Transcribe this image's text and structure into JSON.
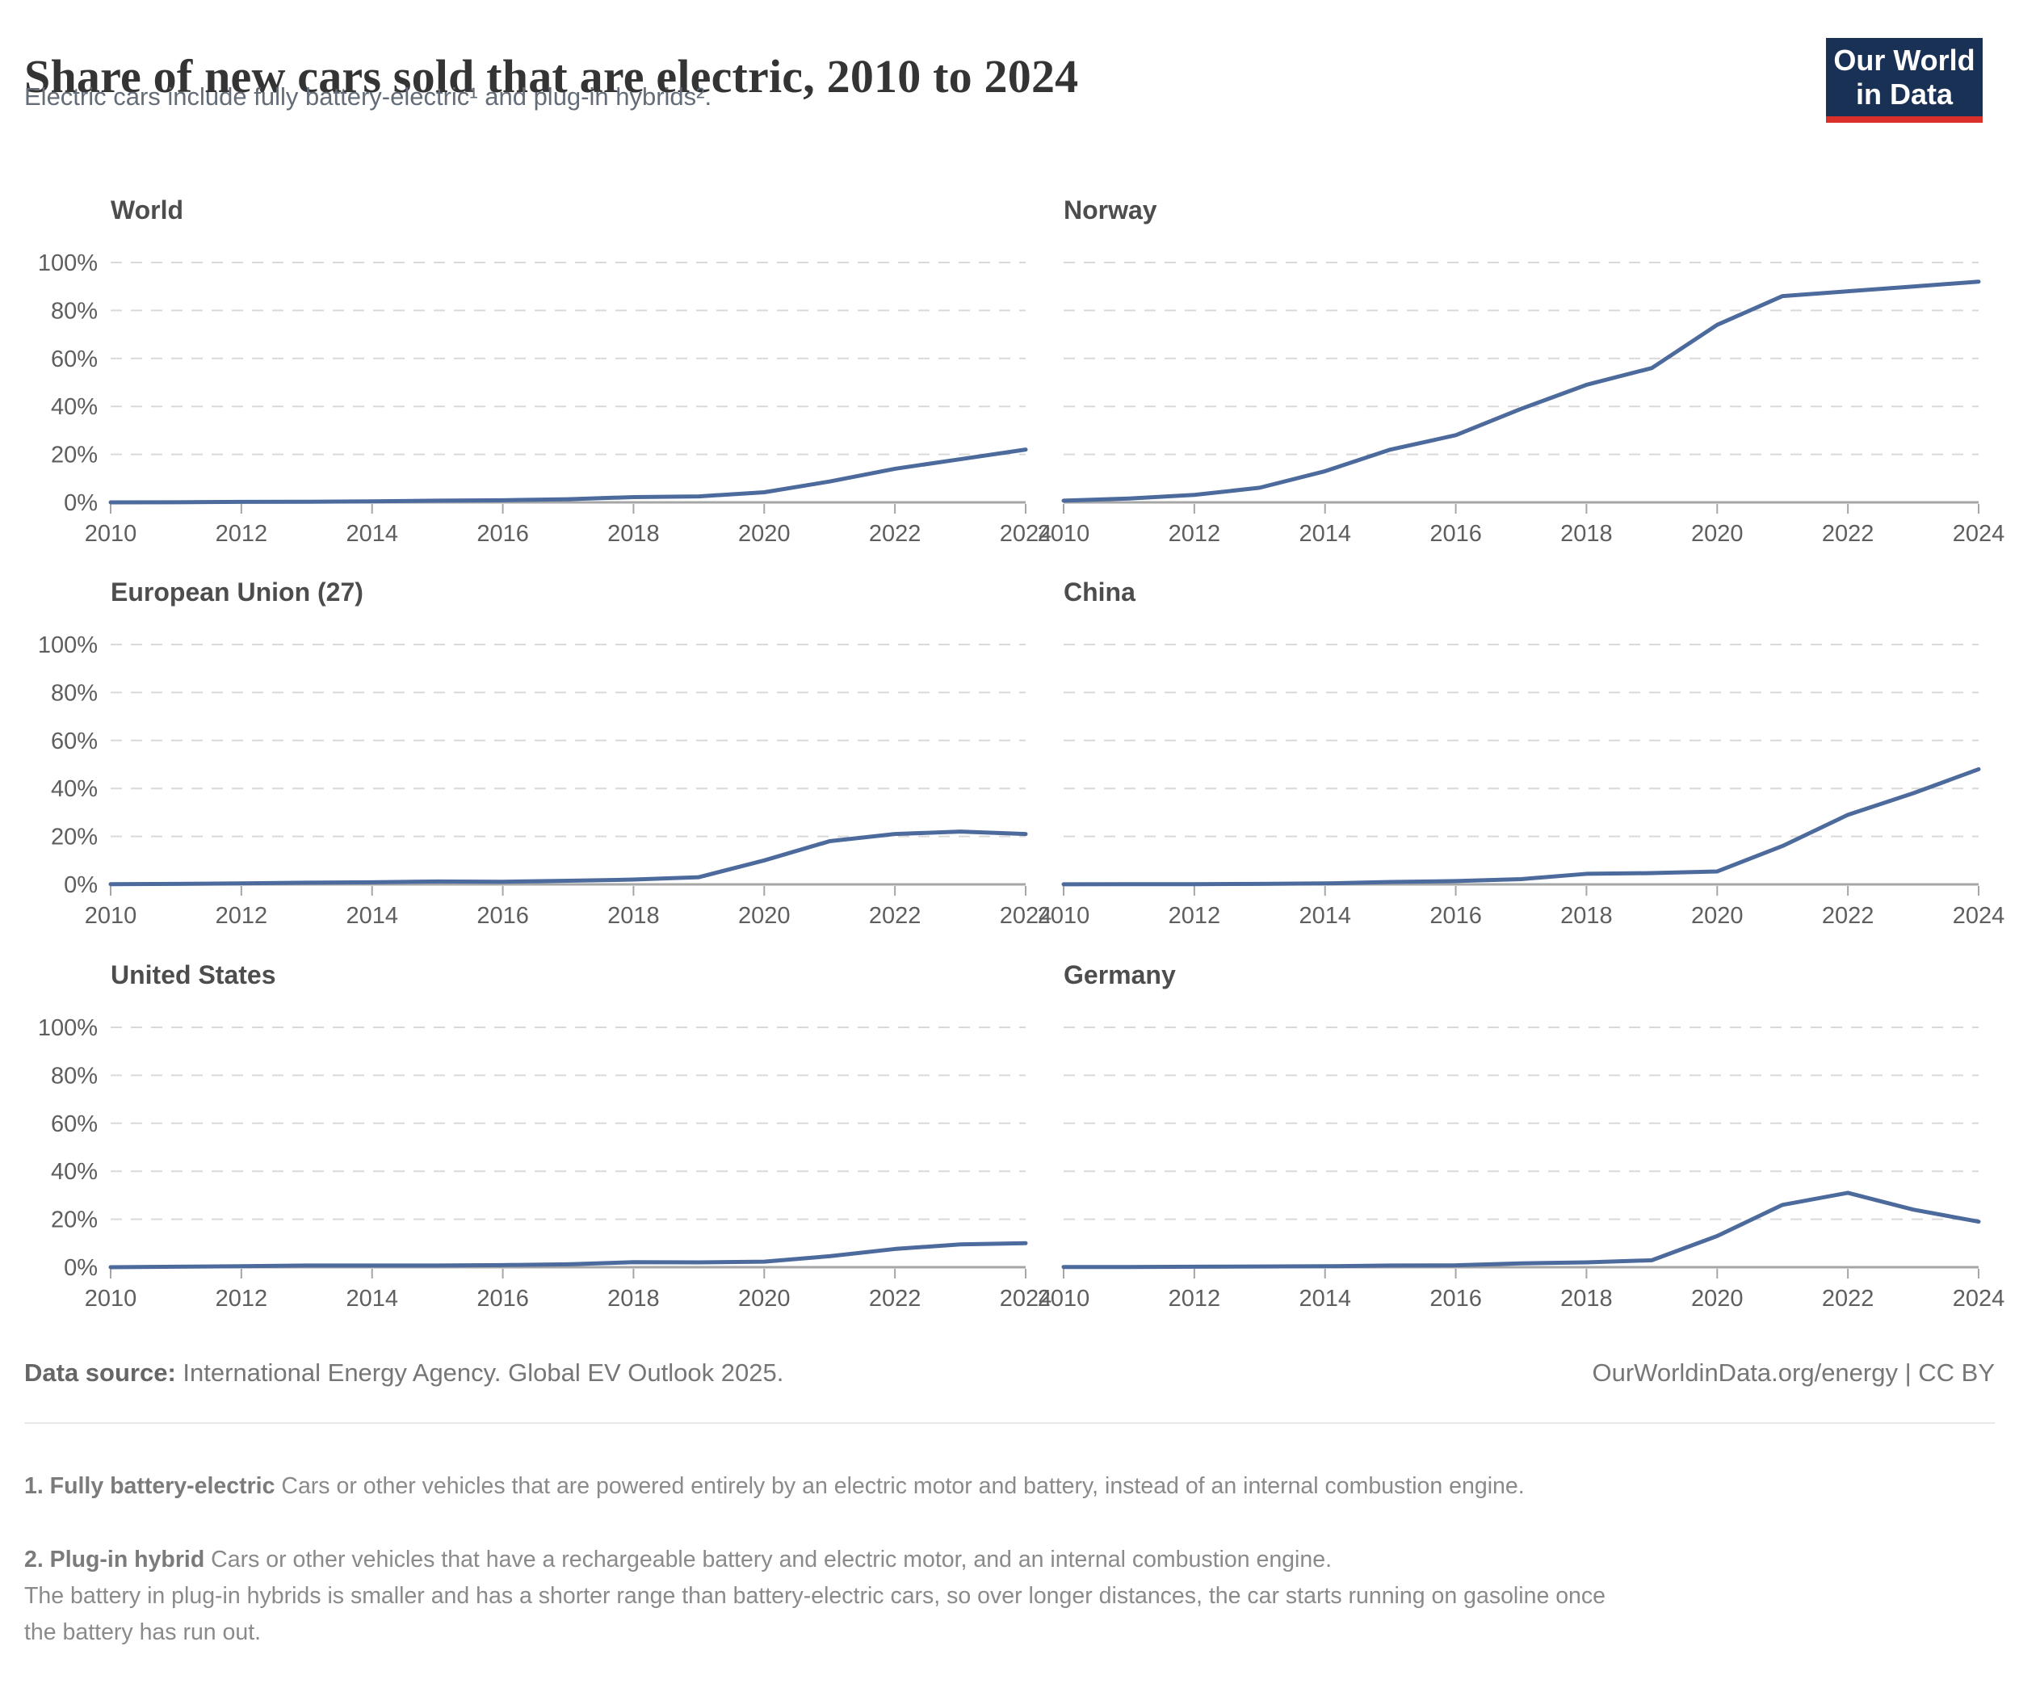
{
  "header": {
    "title": "Share of new cars sold that are electric, 2010 to 2024",
    "subtitle": "Electric cars include fully battery-electric¹ and plug-in hybrids².",
    "logo_line1": "Our World",
    "logo_line2": "in Data"
  },
  "colors": {
    "line": "#4c6a9c",
    "grid": "#d9d9d9",
    "axis": "#a6a6a6",
    "tick_label": "#5e5e5e",
    "logo_bg": "#1a3156",
    "logo_red": "#d9302a"
  },
  "axis": {
    "ylim": [
      0,
      100
    ],
    "yticks": [
      0,
      20,
      40,
      60,
      80,
      100
    ],
    "ytick_labels": [
      "0%",
      "20%",
      "40%",
      "60%",
      "80%",
      "100%"
    ],
    "xticks": [
      2010,
      2012,
      2014,
      2016,
      2018,
      2020,
      2022,
      2024
    ],
    "grid": "dashed",
    "legend": "none"
  },
  "chart_data": [
    {
      "type": "line",
      "title": "World",
      "x": [
        2010,
        2011,
        2012,
        2013,
        2014,
        2015,
        2016,
        2017,
        2018,
        2019,
        2020,
        2021,
        2022,
        2023,
        2024
      ],
      "values": [
        0.01,
        0.05,
        0.2,
        0.25,
        0.4,
        0.7,
        0.9,
        1.3,
        2.2,
        2.5,
        4.2,
        8.7,
        14,
        18,
        22
      ]
    },
    {
      "type": "line",
      "title": "Norway",
      "x": [
        2010,
        2011,
        2012,
        2013,
        2014,
        2015,
        2016,
        2017,
        2018,
        2019,
        2020,
        2021,
        2022,
        2023,
        2024
      ],
      "values": [
        0.7,
        1.6,
        3.1,
        6.1,
        13,
        22,
        28,
        39,
        49,
        56,
        74,
        86,
        88,
        90,
        92
      ]
    },
    {
      "type": "line",
      "title": "European Union (27)",
      "x": [
        2010,
        2011,
        2012,
        2013,
        2014,
        2015,
        2016,
        2017,
        2018,
        2019,
        2020,
        2021,
        2022,
        2023,
        2024
      ],
      "values": [
        0.1,
        0.2,
        0.4,
        0.7,
        0.9,
        1.2,
        1.1,
        1.5,
        2,
        3,
        10,
        18,
        21,
        22,
        21
      ]
    },
    {
      "type": "line",
      "title": "China",
      "x": [
        2010,
        2011,
        2012,
        2013,
        2014,
        2015,
        2016,
        2017,
        2018,
        2019,
        2020,
        2021,
        2022,
        2023,
        2024
      ],
      "values": [
        0.03,
        0.1,
        0.1,
        0.2,
        0.4,
        1,
        1.4,
        2.2,
        4.4,
        4.7,
        5.4,
        16,
        29,
        38,
        48
      ]
    },
    {
      "type": "line",
      "title": "United States",
      "x": [
        2010,
        2011,
        2012,
        2013,
        2014,
        2015,
        2016,
        2017,
        2018,
        2019,
        2020,
        2021,
        2022,
        2023,
        2024
      ],
      "values": [
        0.02,
        0.2,
        0.4,
        0.7,
        0.7,
        0.7,
        0.9,
        1.2,
        2.1,
        2,
        2.3,
        4.6,
        7.6,
        9.5,
        10
      ]
    },
    {
      "type": "line",
      "title": "Germany",
      "x": [
        2010,
        2011,
        2012,
        2013,
        2014,
        2015,
        2016,
        2017,
        2018,
        2019,
        2020,
        2021,
        2022,
        2023,
        2024
      ],
      "values": [
        0.1,
        0.1,
        0.2,
        0.3,
        0.4,
        0.7,
        0.8,
        1.6,
        2,
        2.9,
        13,
        26,
        31,
        24,
        19
      ]
    }
  ],
  "footer": {
    "source_label": "Data source:",
    "source_text": " International Energy Agency. Global EV Outlook 2025.",
    "link_text": "OurWorldinData.org/energy | CC BY"
  },
  "footnotes": {
    "fn1_label": "1. Fully battery-electric",
    "fn1_text": " Cars or other vehicles that are powered entirely by an electric motor and battery, instead of an internal combustion engine.",
    "fn2_label": "2. Plug-in hybrid",
    "fn2_text": " Cars or other vehicles that have a rechargeable battery and electric motor, and an internal combustion engine.",
    "fn2_detail": "The battery in plug-in hybrids is smaller and has a shorter range than battery-electric cars, so over longer distances, the car starts running on gasoline once the battery has run out."
  }
}
